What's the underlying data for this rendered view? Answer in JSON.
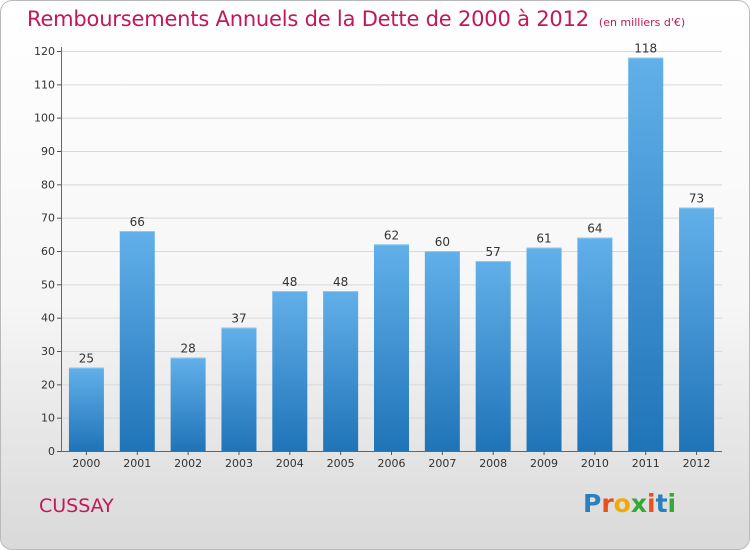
{
  "title": "Remboursements Annuels de la Dette de 2000 à 2012",
  "unit": "(en milliers d'€)",
  "place": "CUSSAY",
  "logo": {
    "letters": [
      "P",
      "r",
      "o",
      "x",
      "i",
      "t",
      "i"
    ],
    "colors": [
      "#2a7fc0",
      "#e8501e",
      "#f2a900",
      "#35a935",
      "#e8501e",
      "#2a7fc0",
      "#35a935"
    ]
  },
  "colors": {
    "bar_top": "#62b0ea",
    "bar_bottom": "#1f74b8",
    "title": "#c2185b"
  },
  "chart_data": {
    "type": "bar",
    "title": "Remboursements Annuels de la Dette de 2000 à 2012",
    "categories": [
      "2000",
      "2001",
      "2002",
      "2003",
      "2004",
      "2005",
      "2006",
      "2007",
      "2008",
      "2009",
      "2010",
      "2011",
      "2012"
    ],
    "values": [
      25,
      66,
      28,
      37,
      48,
      48,
      62,
      60,
      57,
      61,
      64,
      118,
      73
    ],
    "ylim": [
      0,
      120
    ],
    "yticks": [
      0,
      10,
      20,
      30,
      40,
      50,
      60,
      70,
      80,
      90,
      100,
      110,
      120
    ],
    "grid": true,
    "xlabel": "",
    "ylabel": ""
  }
}
